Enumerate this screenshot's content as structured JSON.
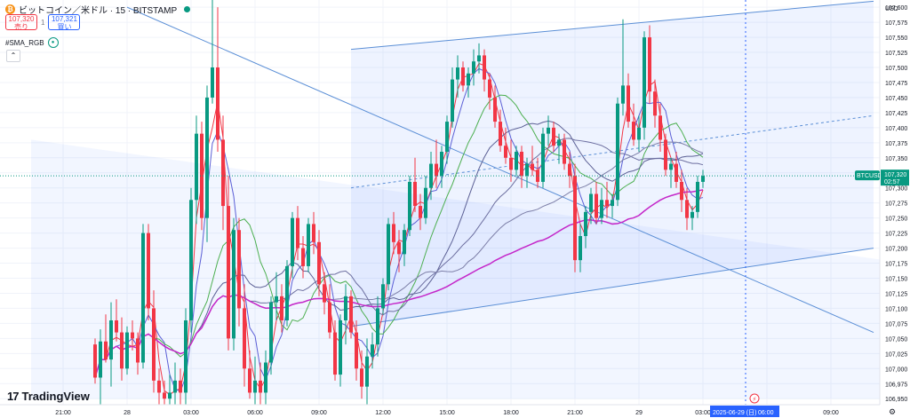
{
  "header": {
    "coin_symbol": "₿",
    "title": "ビットコイン／米ドル · 15 · BITSTAMP"
  },
  "quote": {
    "sell_price": "107,320",
    "sell_label": "売り",
    "spread": "1",
    "buy_price": "107,321",
    "buy_label": "買い"
  },
  "indicator": {
    "name": "#SMA_RGB",
    "eye_icon": "eye-icon"
  },
  "collapse_icon": "chevron-up-icon",
  "logo": {
    "mark": "17",
    "text": "TradingView"
  },
  "chart_data": {
    "type": "candlestick",
    "symbol": "BTCUSD",
    "currency_label": "USD",
    "last_price_label": "107,320",
    "countdown_label": "02:57",
    "cursor_date_label": "2025-06-29 (日)",
    "cursor_time_label": "06:00",
    "ylim": [
      106940,
      107612
    ],
    "y_ticks": [
      106950,
      106975,
      107000,
      107025,
      107050,
      107075,
      107100,
      107125,
      107150,
      107175,
      107200,
      107225,
      107250,
      107275,
      107300,
      107325,
      107350,
      107375,
      107400,
      107425,
      107450,
      107475,
      107500,
      107525,
      107550,
      107575,
      107600
    ],
    "y_tick_labels": [
      "106,950",
      "106,975",
      "107,000",
      "107,025",
      "107,050",
      "107,075",
      "107,100",
      "107,125",
      "107,150",
      "107,175",
      "107,200",
      "107,225",
      "107,250",
      "107,275",
      "107,300",
      "107,325",
      "107,350",
      "107,375",
      "107,400",
      "107,425",
      "107,450",
      "107,475",
      "107,500",
      "107,525",
      "107,550",
      "107,575",
      "107,600"
    ],
    "x_tick_labels": [
      "21:00",
      "28",
      "03:00",
      "06:00",
      "09:00",
      "12:00",
      "15:00",
      "18:00",
      "21:00",
      "29",
      "03:00",
      "06:00",
      "09:00"
    ],
    "x_tick_bars": [
      -6,
      6,
      18,
      30,
      42,
      54,
      66,
      78,
      90,
      102,
      114,
      126,
      138
    ],
    "bar_count": 124,
    "candles": [
      [
        107040,
        107050,
        106975,
        106985
      ],
      [
        106985,
        107065,
        106940,
        107045
      ],
      [
        107045,
        107090,
        107010,
        107015
      ],
      [
        107015,
        107110,
        106970,
        107080
      ],
      [
        107080,
        107115,
        107045,
        107060
      ],
      [
        107060,
        107085,
        106980,
        107000
      ],
      [
        107000,
        107070,
        106990,
        107060
      ],
      [
        107060,
        107080,
        107030,
        107050
      ],
      [
        107050,
        107060,
        106990,
        107010
      ],
      [
        107010,
        107240,
        107000,
        107225
      ],
      [
        107225,
        107240,
        107080,
        107100
      ],
      [
        107100,
        107130,
        106960,
        106980
      ],
      [
        106980,
        107000,
        106940,
        106960
      ],
      [
        106960,
        106980,
        106940,
        106950
      ],
      [
        106950,
        106990,
        106940,
        106960
      ],
      [
        106960,
        107010,
        106940,
        106980
      ],
      [
        106980,
        107000,
        106940,
        106960
      ],
      [
        106960,
        107100,
        106940,
        107080
      ],
      [
        107080,
        107300,
        107060,
        107280
      ],
      [
        107280,
        107420,
        107240,
        107390
      ],
      [
        107390,
        107410,
        107230,
        107250
      ],
      [
        107250,
        107470,
        107210,
        107450
      ],
      [
        107450,
        107620,
        107440,
        107500
      ],
      [
        107500,
        107600,
        107360,
        107380
      ],
      [
        107380,
        107420,
        107230,
        107270
      ],
      [
        107270,
        107320,
        107030,
        107050
      ],
      [
        107050,
        107250,
        107030,
        107230
      ],
      [
        107230,
        107250,
        107070,
        107100
      ],
      [
        107100,
        107140,
        106970,
        107000
      ],
      [
        107000,
        107030,
        106950,
        106960
      ],
      [
        106960,
        107020,
        106940,
        106980
      ],
      [
        106980,
        107010,
        106940,
        106960
      ],
      [
        106960,
        107030,
        106940,
        107010
      ],
      [
        107010,
        107120,
        106990,
        107110
      ],
      [
        107110,
        107160,
        107080,
        107120
      ],
      [
        107120,
        107140,
        107060,
        107080
      ],
      [
        107080,
        107180,
        107070,
        107170
      ],
      [
        107170,
        107260,
        107150,
        107250
      ],
      [
        107250,
        107270,
        107180,
        107200
      ],
      [
        107200,
        107220,
        107150,
        107170
      ],
      [
        107170,
        107250,
        107160,
        107240
      ],
      [
        107240,
        107260,
        107190,
        107210
      ],
      [
        107210,
        107230,
        107120,
        107140
      ],
      [
        107140,
        107160,
        107090,
        107110
      ],
      [
        107110,
        107140,
        107050,
        107060
      ],
      [
        107060,
        107080,
        106980,
        106990
      ],
      [
        106990,
        107090,
        106970,
        107080
      ],
      [
        107080,
        107140,
        107040,
        107120
      ],
      [
        107120,
        107130,
        107050,
        107060
      ],
      [
        107060,
        107080,
        106980,
        107000
      ],
      [
        107000,
        107030,
        106950,
        106970
      ],
      [
        106970,
        107050,
        106940,
        107020
      ],
      [
        107020,
        107060,
        107000,
        107040
      ],
      [
        107040,
        107120,
        107020,
        107100
      ],
      [
        107100,
        107150,
        107090,
        107140
      ],
      [
        107140,
        107250,
        107130,
        107240
      ],
      [
        107240,
        107260,
        107190,
        107210
      ],
      [
        107210,
        107230,
        107160,
        107190
      ],
      [
        107190,
        107240,
        107170,
        107230
      ],
      [
        107230,
        107320,
        107220,
        107310
      ],
      [
        107310,
        107350,
        107260,
        107270
      ],
      [
        107270,
        107290,
        107230,
        107250
      ],
      [
        107250,
        107320,
        107240,
        107300
      ],
      [
        107300,
        107360,
        107280,
        107340
      ],
      [
        107340,
        107380,
        107300,
        107320
      ],
      [
        107320,
        107370,
        107300,
        107360
      ],
      [
        107360,
        107420,
        107340,
        107410
      ],
      [
        107410,
        107500,
        107400,
        107480
      ],
      [
        107480,
        107520,
        107450,
        107500
      ],
      [
        107500,
        107510,
        107460,
        107470
      ],
      [
        107470,
        107500,
        107450,
        107490
      ],
      [
        107490,
        107530,
        107470,
        107510
      ],
      [
        107510,
        107540,
        107490,
        107520
      ],
      [
        107520,
        107530,
        107460,
        107480
      ],
      [
        107480,
        107490,
        107430,
        107450
      ],
      [
        107450,
        107470,
        107400,
        107410
      ],
      [
        107410,
        107430,
        107360,
        107370
      ],
      [
        107370,
        107400,
        107340,
        107350
      ],
      [
        107350,
        107380,
        107310,
        107330
      ],
      [
        107330,
        107370,
        107320,
        107360
      ],
      [
        107360,
        107370,
        107300,
        107320
      ],
      [
        107320,
        107350,
        107300,
        107340
      ],
      [
        107340,
        107370,
        107320,
        107330
      ],
      [
        107330,
        107350,
        107300,
        107310
      ],
      [
        107310,
        107400,
        107300,
        107390
      ],
      [
        107390,
        107420,
        107370,
        107400
      ],
      [
        107400,
        107410,
        107360,
        107370
      ],
      [
        107370,
        107390,
        107340,
        107380
      ],
      [
        107380,
        107390,
        107330,
        107340
      ],
      [
        107340,
        107360,
        107300,
        107320
      ],
      [
        107320,
        107340,
        107160,
        107180
      ],
      [
        107180,
        107240,
        107160,
        107220
      ],
      [
        107220,
        107270,
        107200,
        107260
      ],
      [
        107260,
        107300,
        107240,
        107290
      ],
      [
        107290,
        107310,
        107240,
        107250
      ],
      [
        107250,
        107300,
        107240,
        107280
      ],
      [
        107280,
        107310,
        107250,
        107270
      ],
      [
        107270,
        107290,
        107250,
        107280
      ],
      [
        107280,
        107450,
        107270,
        107440
      ],
      [
        107440,
        107580,
        107420,
        107470
      ],
      [
        107470,
        107490,
        107400,
        107410
      ],
      [
        107410,
        107440,
        107370,
        107380
      ],
      [
        107380,
        107420,
        107360,
        107400
      ],
      [
        107400,
        107560,
        107380,
        107550
      ],
      [
        107550,
        107570,
        107440,
        107460
      ],
      [
        107460,
        107480,
        107400,
        107420
      ],
      [
        107420,
        107440,
        107360,
        107380
      ],
      [
        107380,
        107390,
        107320,
        107330
      ],
      [
        107330,
        107350,
        107300,
        107340
      ],
      [
        107340,
        107360,
        107300,
        107310
      ],
      [
        107310,
        107330,
        107260,
        107280
      ],
      [
        107280,
        107300,
        107230,
        107250
      ],
      [
        107250,
        107270,
        107230,
        107260
      ],
      [
        107260,
        107320,
        107250,
        107310
      ],
      [
        107310,
        107330,
        107300,
        107320
      ]
    ],
    "moving_averages": [
      {
        "color": "#f23645",
        "period": 3
      },
      {
        "color": "#5b5fd6",
        "period": 5
      },
      {
        "color": "#4caf50",
        "period": 12
      },
      {
        "color": "#5d6196",
        "period": 20
      },
      {
        "color": "#6d6fa0",
        "period": 30
      },
      {
        "color": "#7d7fa8",
        "period": 45
      },
      {
        "color": "#c427c9",
        "period": 75
      }
    ],
    "long_ma_color": "#c427c9",
    "colors": {
      "up": "#089981",
      "down": "#f23645",
      "grid": "#f0f3fa",
      "price_line": "#9598a1"
    },
    "grid": true,
    "cursor_bar": 122
  }
}
